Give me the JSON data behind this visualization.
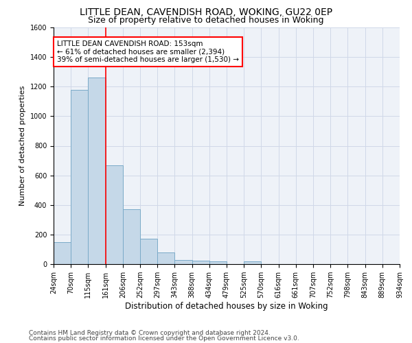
{
  "title1": "LITTLE DEAN, CAVENDISH ROAD, WOKING, GU22 0EP",
  "title2": "Size of property relative to detached houses in Woking",
  "xlabel": "Distribution of detached houses by size in Woking",
  "ylabel": "Number of detached properties",
  "xtick_labels": [
    "24sqm",
    "70sqm",
    "115sqm",
    "161sqm",
    "206sqm",
    "252sqm",
    "297sqm",
    "343sqm",
    "388sqm",
    "434sqm",
    "479sqm",
    "525sqm",
    "570sqm",
    "616sqm",
    "661sqm",
    "707sqm",
    "752sqm",
    "798sqm",
    "843sqm",
    "889sqm",
    "934sqm"
  ],
  "bar_heights": [
    150,
    1180,
    1260,
    670,
    370,
    170,
    80,
    30,
    25,
    20,
    0,
    20,
    0,
    0,
    0,
    0,
    0,
    0,
    0,
    0
  ],
  "bar_color": "#c5d8e8",
  "bar_edge_color": "#7aaac8",
  "red_line_index": 3,
  "annotation_text": "LITTLE DEAN CAVENDISH ROAD: 153sqm\n← 61% of detached houses are smaller (2,394)\n39% of semi-detached houses are larger (1,530) →",
  "annotation_box_color": "white",
  "annotation_box_edge": "red",
  "ylim": [
    0,
    1600
  ],
  "yticks": [
    0,
    200,
    400,
    600,
    800,
    1000,
    1200,
    1400,
    1600
  ],
  "grid_color": "#d0d8e8",
  "background_color": "#eef2f8",
  "footer1": "Contains HM Land Registry data © Crown copyright and database right 2024.",
  "footer2": "Contains public sector information licensed under the Open Government Licence v3.0.",
  "title1_fontsize": 10,
  "title2_fontsize": 9,
  "xlabel_fontsize": 8.5,
  "ylabel_fontsize": 8,
  "tick_fontsize": 7,
  "annotation_fontsize": 7.5,
  "footer_fontsize": 6.5
}
